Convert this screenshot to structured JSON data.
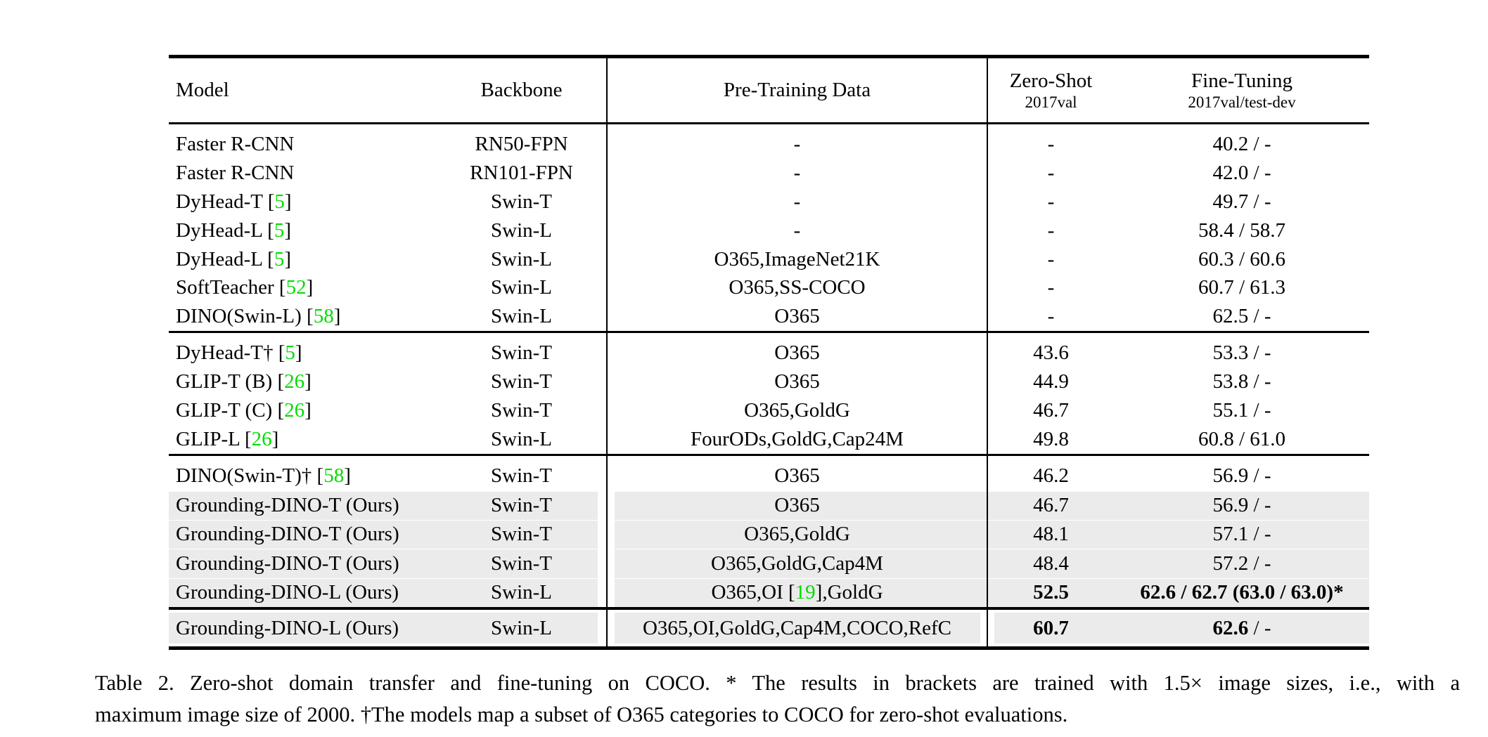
{
  "header": {
    "model": "Model",
    "backbone": "Backbone",
    "pretrain": "Pre-Training Data",
    "zero_shot": "Zero-Shot",
    "zero_shot_sub": "2017val",
    "fine_tuning": "Fine-Tuning",
    "fine_tuning_sub": "2017val/test-dev"
  },
  "colors": {
    "citation_green": "#00dd00",
    "row_highlight_gray": "#ebebeb"
  },
  "sections": [
    {
      "rows": [
        {
          "model": "Faster R-CNN",
          "cite": "",
          "backbone": "RN50-FPN",
          "pre": "-",
          "pre_cite": "",
          "pre_post": "",
          "zs": "-",
          "zs_bold": false,
          "ft": "40.2 / -",
          "ft_bold": false,
          "ft_tail": "",
          "gray": false
        },
        {
          "model": "Faster R-CNN",
          "cite": "",
          "backbone": "RN101-FPN",
          "pre": "-",
          "pre_cite": "",
          "pre_post": "",
          "zs": "-",
          "zs_bold": false,
          "ft": "42.0 / -",
          "ft_bold": false,
          "ft_tail": "",
          "gray": false
        },
        {
          "model": "DyHead-T",
          "cite": "5",
          "backbone": "Swin-T",
          "pre": "-",
          "pre_cite": "",
          "pre_post": "",
          "zs": "-",
          "zs_bold": false,
          "ft": "49.7 / -",
          "ft_bold": false,
          "ft_tail": "",
          "gray": false
        },
        {
          "model": "DyHead-L",
          "cite": "5",
          "backbone": "Swin-L",
          "pre": "-",
          "pre_cite": "",
          "pre_post": "",
          "zs": "-",
          "zs_bold": false,
          "ft": "58.4 / 58.7",
          "ft_bold": false,
          "ft_tail": "",
          "gray": false
        },
        {
          "model": "DyHead-L",
          "cite": "5",
          "backbone": "Swin-L",
          "pre": "O365,ImageNet21K",
          "pre_cite": "",
          "pre_post": "",
          "zs": "-",
          "zs_bold": false,
          "ft": "60.3 / 60.6",
          "ft_bold": false,
          "ft_tail": "",
          "gray": false
        },
        {
          "model": "SoftTeacher",
          "cite": "52",
          "backbone": "Swin-L",
          "pre": "O365,SS-COCO",
          "pre_cite": "",
          "pre_post": "",
          "zs": "-",
          "zs_bold": false,
          "ft": "60.7 / 61.3",
          "ft_bold": false,
          "ft_tail": "",
          "gray": false
        },
        {
          "model": "DINO(Swin-L)",
          "cite": "58",
          "backbone": "Swin-L",
          "pre": "O365",
          "pre_cite": "",
          "pre_post": "",
          "zs": "-",
          "zs_bold": false,
          "ft": "62.5 / -",
          "ft_bold": false,
          "ft_tail": "",
          "gray": false
        }
      ]
    },
    {
      "rows": [
        {
          "model": "DyHead-T†",
          "cite": "5",
          "backbone": "Swin-T",
          "pre": "O365",
          "pre_cite": "",
          "pre_post": "",
          "zs": "43.6",
          "zs_bold": false,
          "ft": "53.3 / -",
          "ft_bold": false,
          "ft_tail": "",
          "gray": false
        },
        {
          "model": "GLIP-T (B)",
          "cite": "26",
          "backbone": "Swin-T",
          "pre": "O365",
          "pre_cite": "",
          "pre_post": "",
          "zs": "44.9",
          "zs_bold": false,
          "ft": "53.8 / -",
          "ft_bold": false,
          "ft_tail": "",
          "gray": false
        },
        {
          "model": "GLIP-T (C)",
          "cite": "26",
          "backbone": "Swin-T",
          "pre": "O365,GoldG",
          "pre_cite": "",
          "pre_post": "",
          "zs": "46.7",
          "zs_bold": false,
          "ft": "55.1 / -",
          "ft_bold": false,
          "ft_tail": "",
          "gray": false
        },
        {
          "model": "GLIP-L",
          "cite": "26",
          "backbone": "Swin-L",
          "pre": "FourODs,GoldG,Cap24M",
          "pre_cite": "",
          "pre_post": "",
          "zs": "49.8",
          "zs_bold": false,
          "ft": "60.8 / 61.0",
          "ft_bold": false,
          "ft_tail": "",
          "gray": false
        }
      ]
    },
    {
      "rows": [
        {
          "model": "DINO(Swin-T)†",
          "cite": "58",
          "backbone": "Swin-T",
          "pre": "O365",
          "pre_cite": "",
          "pre_post": "",
          "zs": "46.2",
          "zs_bold": false,
          "ft": "56.9 / -",
          "ft_bold": false,
          "ft_tail": "",
          "gray": false
        },
        {
          "model": "Grounding-DINO-T (Ours)",
          "cite": "",
          "backbone": "Swin-T",
          "pre": "O365",
          "pre_cite": "",
          "pre_post": "",
          "zs": "46.7",
          "zs_bold": false,
          "ft": "56.9 / -",
          "ft_bold": false,
          "ft_tail": "",
          "gray": true
        },
        {
          "model": "Grounding-DINO-T (Ours)",
          "cite": "",
          "backbone": "Swin-T",
          "pre": "O365,GoldG",
          "pre_cite": "",
          "pre_post": "",
          "zs": "48.1",
          "zs_bold": false,
          "ft": "57.1 / -",
          "ft_bold": false,
          "ft_tail": "",
          "gray": true
        },
        {
          "model": "Grounding-DINO-T (Ours)",
          "cite": "",
          "backbone": "Swin-T",
          "pre": "O365,GoldG,Cap4M",
          "pre_cite": "",
          "pre_post": "",
          "zs": "48.4",
          "zs_bold": false,
          "ft": "57.2 / -",
          "ft_bold": false,
          "ft_tail": "",
          "gray": true
        },
        {
          "model": "Grounding-DINO-L (Ours)",
          "cite": "",
          "backbone": "Swin-L",
          "pre": "O365,OI",
          "pre_cite": "19",
          "pre_post": ",GoldG",
          "zs": "52.5",
          "zs_bold": true,
          "ft": "62.6 / 62.7 (63.0 / 63.0)*",
          "ft_bold": true,
          "ft_tail": "",
          "gray": true
        }
      ]
    },
    {
      "rows": [
        {
          "model": "Grounding-DINO-L (Ours)",
          "cite": "",
          "backbone": "Swin-L",
          "pre": "O365,OI,GoldG,Cap4M,COCO,RefC",
          "pre_cite": "",
          "pre_post": "",
          "zs": "60.7",
          "zs_bold": true,
          "ft": "62.6",
          "ft_bold": true,
          "ft_tail": " / -",
          "gray": true,
          "split_gray": true
        }
      ]
    }
  ],
  "caption": {
    "line1": "Table 2.  Zero-shot domain transfer and fine-tuning on COCO. * The results in brackets are trained with 1.5× image sizes, i.e., with a",
    "line2": "maximum image size of 2000. †The models map a subset of O365 categories to COCO for zero-shot evaluations."
  }
}
